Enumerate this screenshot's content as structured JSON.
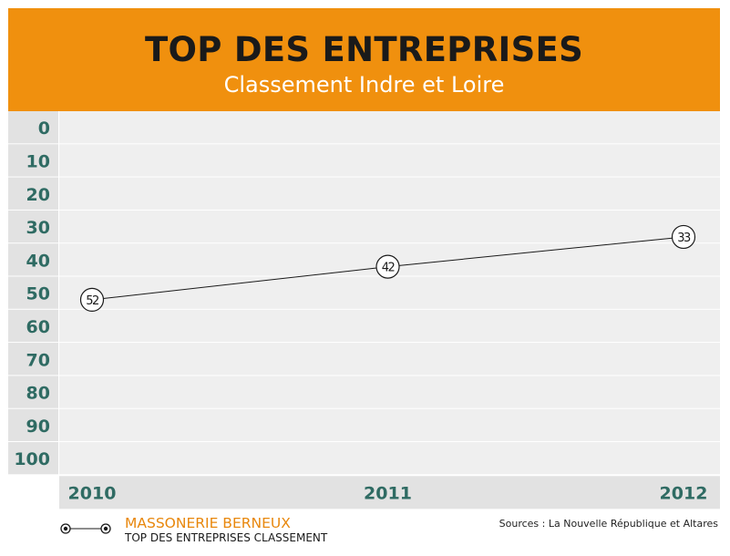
{
  "header": {
    "title": "TOP DES ENTREPRISES",
    "subtitle": "Classement  Indre et Loire"
  },
  "legend": {
    "name": "MASSONERIE BERNEUX",
    "subtitle": "TOP DES ENTREPRISES CLASSEMENT"
  },
  "sources": "Sources : La  Nouvelle République et Altares",
  "colors": {
    "header_bg": "#f0900e",
    "title_text": "#1a1a1a",
    "subtitle_text": "#ffffff",
    "tick_text": "#2f6b63",
    "legend_name": "#e8870c",
    "band_light": "#efefef",
    "band_dark": "#e2e2e2",
    "line": "#1a1a1a"
  },
  "chart_data": {
    "type": "line",
    "title": "TOP DES ENTREPRISES",
    "subtitle": "Classement  Indre et Loire",
    "categories": [
      "2010",
      "2011",
      "2012"
    ],
    "series": [
      {
        "name": "MASSONERIE BERNEUX",
        "values": [
          52,
          42,
          33
        ],
        "labels": [
          "52",
          "42",
          "33"
        ]
      }
    ],
    "y_ticks": [
      "0",
      "10",
      "20",
      "30",
      "40",
      "50",
      "60",
      "70",
      "80",
      "90",
      "100"
    ],
    "ylim": [
      0,
      100
    ],
    "y_inverted": true,
    "grid": true,
    "legend_position": "bottom-left"
  }
}
